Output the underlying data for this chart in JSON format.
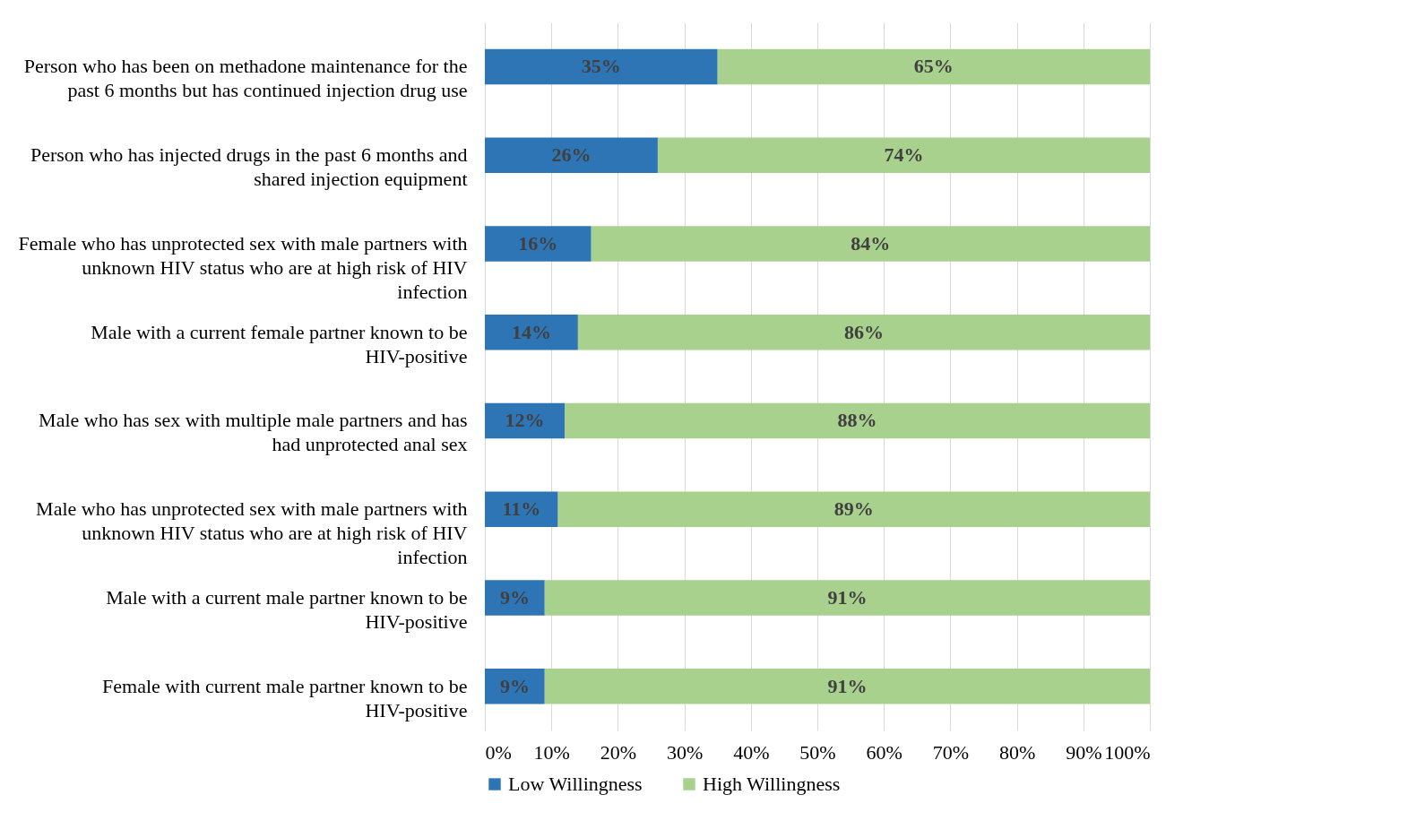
{
  "chart_data": {
    "type": "bar",
    "orientation": "horizontal",
    "stacked": true,
    "categories": [
      "Person who has been on methadone maintenance for the past 6 months but has continued injection drug use",
      "Person who has injected drugs in the past 6 months and shared injection equipment",
      "Female who has unprotected sex with male partners with unknown HIV status who are at high risk of HIV infection",
      "Male with a current female partner known to be HIV-positive",
      "Male who has sex with multiple male partners and has had unprotected anal sex",
      "Male who has unprotected sex with male partners with unknown HIV status who are at high risk of HIV infection",
      "Male with a current male partner known to be HIV-positive",
      "Female with current male partner known to be HIV-positive"
    ],
    "series": [
      {
        "name": "Low Willingness",
        "color": "#2e75b6",
        "values": [
          35,
          26,
          16,
          14,
          12,
          11,
          9,
          9
        ],
        "value_labels": [
          "35%",
          "26%",
          "16%",
          "14%",
          "12%",
          "11%",
          "9%",
          "9%"
        ]
      },
      {
        "name": "High Willingness",
        "color": "#a9d18e",
        "values": [
          65,
          74,
          84,
          86,
          88,
          89,
          91,
          91
        ],
        "value_labels": [
          "65%",
          "74%",
          "84%",
          "86%",
          "88%",
          "89%",
          "91%",
          "91%"
        ]
      }
    ],
    "xlim": [
      0,
      100
    ],
    "xticks": [
      {
        "value": 0,
        "label": "0%"
      },
      {
        "value": 10,
        "label": "10%"
      },
      {
        "value": 20,
        "label": "20%"
      },
      {
        "value": 30,
        "label": "30%"
      },
      {
        "value": 40,
        "label": "40%"
      },
      {
        "value": 50,
        "label": "50%"
      },
      {
        "value": 60,
        "label": "60%"
      },
      {
        "value": 70,
        "label": "70%"
      },
      {
        "value": 80,
        "label": "80%"
      },
      {
        "value": 90,
        "label": "90%"
      },
      {
        "value": 100,
        "label": "100%"
      }
    ],
    "grid": "x",
    "legend": "bottom"
  }
}
